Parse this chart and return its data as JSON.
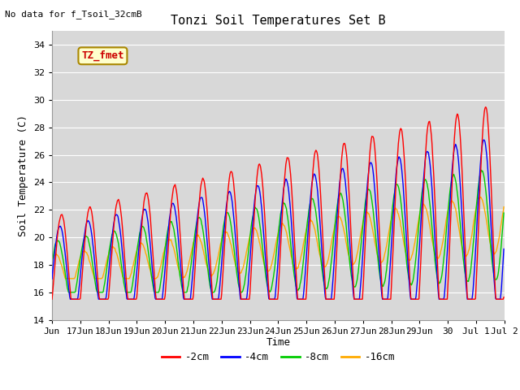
{
  "title": "Tonzi Soil Temperatures Set B",
  "xlabel": "Time",
  "ylabel": "Soil Temperature (C)",
  "note": "No data for f_Tsoil_32cmB",
  "legend_label": "TZ_fmet",
  "ylim": [
    14,
    35
  ],
  "xlim_start": 0,
  "xlim_end": 16,
  "series_labels": [
    "-2cm",
    "-4cm",
    "-8cm",
    "-16cm"
  ],
  "series_colors": [
    "#ff0000",
    "#0000ff",
    "#00cc00",
    "#ffaa00"
  ],
  "xtick_labels": [
    "Jun",
    "17Jun",
    "18Jun",
    "19Jun",
    "20Jun",
    "21Jun",
    "22Jun",
    "23Jun",
    "24Jun",
    "25Jun",
    "26Jun",
    "27Jun",
    "28Jun",
    "29Jun",
    "30",
    "Jul 1",
    "Jul 2"
  ],
  "bg_color": "#d8d8d8",
  "line_width": 1.0,
  "title_fontsize": 11,
  "axis_fontsize": 9,
  "tick_fontsize": 8,
  "note_fontsize": 8,
  "legend_fontsize": 9
}
